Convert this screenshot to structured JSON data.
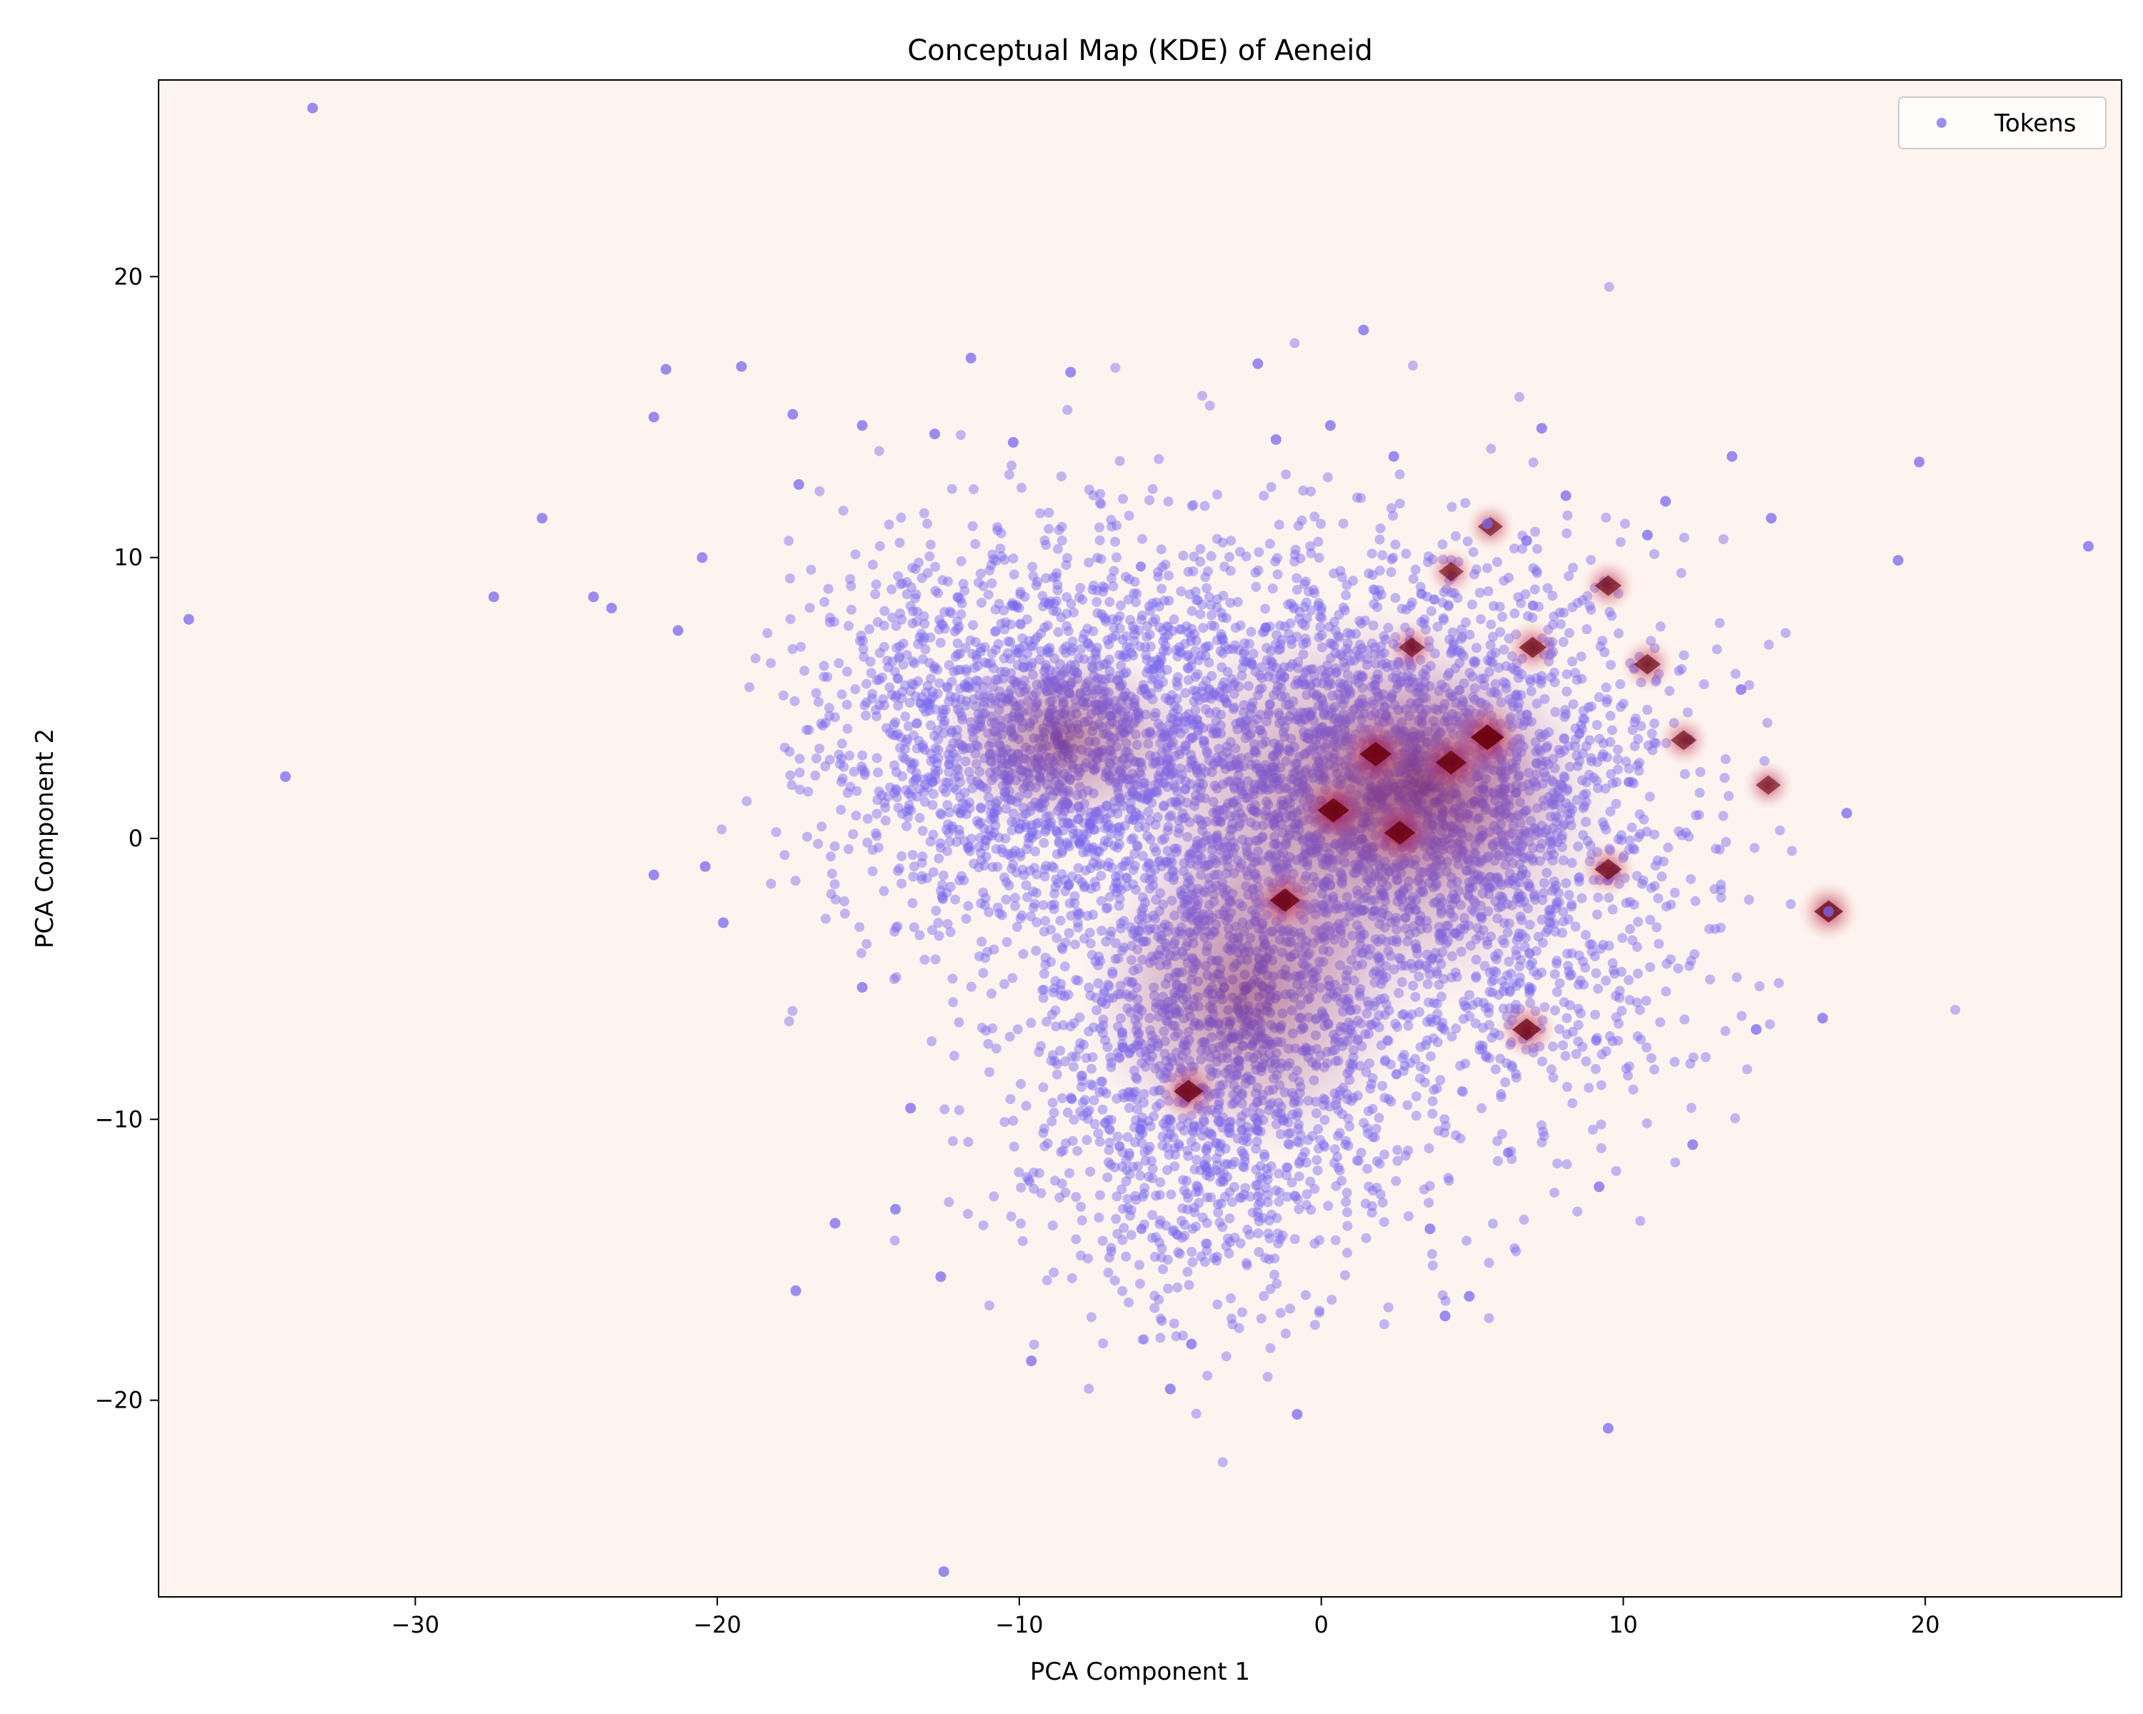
{
  "chart_data": {
    "type": "scatter",
    "title": "Conceptual Map (KDE) of Aeneid",
    "xlabel": "PCA Component 1",
    "ylabel": "PCA Component 2",
    "xlim": [
      -38.5,
      26.5
    ],
    "ylim": [
      -27,
      27
    ],
    "xticks": [
      -30,
      -20,
      -10,
      0,
      10,
      20
    ],
    "yticks": [
      -20,
      -10,
      0,
      10,
      20
    ],
    "xtick_labels": [
      "−30",
      "−20",
      "−10",
      "0",
      "10",
      "20"
    ],
    "ytick_labels": [
      "−20",
      "−10",
      "0",
      "10",
      "20"
    ],
    "grid": false,
    "legend": {
      "position": "top-right",
      "entries": [
        "Tokens"
      ]
    },
    "background_color": "#fdf4f0",
    "point_color": "#7b68ee",
    "density_color_low": "#f6c2a8",
    "density_color_high": "#67000d",
    "series": [
      {
        "name": "Tokens",
        "x": [
          -37.5,
          -33.4,
          -34.3,
          -27.4,
          -25.8,
          -23.5,
          -22.1,
          -21.7,
          -21.3,
          -20.4,
          -19.2,
          -19.8,
          -17.5,
          -17.4,
          -15.2,
          -12.6,
          -12.5,
          -11.6,
          -8.3,
          -2.1,
          1.4,
          0.3,
          -0.8,
          9.5,
          13.6,
          19.8,
          19.1,
          25.4,
          16.6,
          16.8,
          14.4,
          14.9,
          10.8,
          7.3,
          -17.3,
          -22.1,
          -20.5,
          -15.2,
          -14.1,
          -12.8,
          -10.2,
          -5.0,
          -4.3,
          3.6,
          4.9,
          9.2,
          11.4,
          12.3,
          13.9,
          17.4,
          6.8,
          5.5,
          -13.6,
          -24.1,
          -16.1,
          -9.6,
          2.4,
          8.1,
          -1.5,
          4.1
        ],
        "y": [
          7.8,
          26.0,
          2.2,
          8.6,
          11.4,
          8.2,
          15.0,
          16.7,
          7.4,
          -1.0,
          16.8,
          -3.0,
          15.1,
          -16.1,
          14.7,
          -15.6,
          -26.1,
          17.1,
          16.6,
          16.9,
          18.1,
          14.7,
          -20.5,
          -21.0,
          13.6,
          13.4,
          9.9,
          10.4,
          -6.4,
          -2.6,
          -6.8,
          11.4,
          10.8,
          14.6,
          12.6,
          -1.3,
          10.0,
          -5.3,
          -13.2,
          14.4,
          14.1,
          -19.6,
          -18.0,
          -13.9,
          -16.3,
          -12.4,
          12.0,
          -10.9,
          5.3,
          0.9,
          10.6,
          11.2,
          -9.6,
          8.6,
          -13.7,
          -18.6,
          13.6,
          12.2,
          14.2,
          -17.0
        ]
      }
    ],
    "dense_cloud": {
      "n_points": 6500,
      "clusters": [
        {
          "cx": -9.0,
          "cy": 3.5,
          "sx": 3.8,
          "sy": 3.6,
          "weight": 0.28
        },
        {
          "cx": 1.5,
          "cy": 2.5,
          "sx": 4.2,
          "sy": 4.0,
          "weight": 0.34
        },
        {
          "cx": -3.5,
          "cy": -8.0,
          "sx": 3.2,
          "sy": 4.2,
          "weight": 0.24
        },
        {
          "cx": 6.0,
          "cy": -2.0,
          "sx": 3.5,
          "sy": 4.5,
          "weight": 0.14
        }
      ]
    },
    "density_hotspots": [
      {
        "x": 5.5,
        "y": 3.6,
        "level": 1.0
      },
      {
        "x": 1.8,
        "y": 3.0,
        "level": 0.9
      },
      {
        "x": 0.4,
        "y": 1.0,
        "level": 0.9
      },
      {
        "x": 4.3,
        "y": 2.7,
        "level": 0.85
      },
      {
        "x": -1.2,
        "y": -2.2,
        "level": 0.8
      },
      {
        "x": 2.6,
        "y": 0.2,
        "level": 0.85
      },
      {
        "x": -4.4,
        "y": -9.0,
        "level": 0.75
      },
      {
        "x": 6.8,
        "y": -6.8,
        "level": 0.7
      },
      {
        "x": 16.8,
        "y": -2.6,
        "level": 0.7
      },
      {
        "x": 9.5,
        "y": -1.1,
        "level": 0.6
      },
      {
        "x": 9.5,
        "y": 9.0,
        "level": 0.55
      },
      {
        "x": 10.8,
        "y": 6.2,
        "level": 0.55
      },
      {
        "x": 7.0,
        "y": 6.8,
        "level": 0.6
      },
      {
        "x": 12.0,
        "y": 3.5,
        "level": 0.5
      },
      {
        "x": 14.8,
        "y": 1.9,
        "level": 0.45
      },
      {
        "x": 5.6,
        "y": 11.1,
        "level": 0.45
      },
      {
        "x": 4.3,
        "y": 9.5,
        "level": 0.45
      },
      {
        "x": 3.0,
        "y": 6.8,
        "level": 0.5
      }
    ]
  }
}
